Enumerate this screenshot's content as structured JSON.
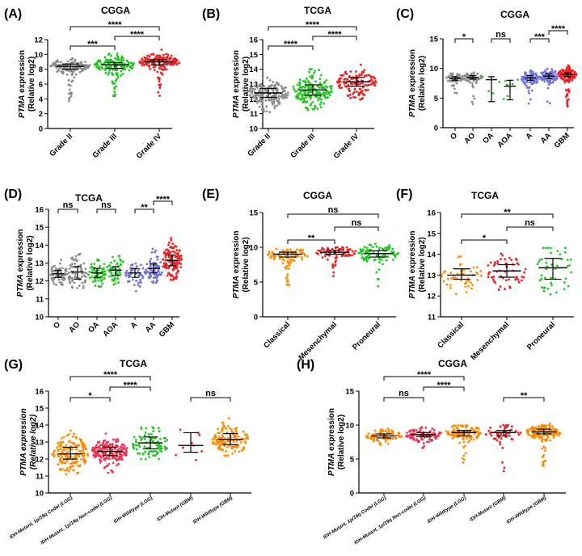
{
  "ylabel_main": "PTMA",
  "ylabel_rest": " expression",
  "ylabel_sub": "(Relative log2)",
  "chart_data": [
    {
      "panel": "(A)",
      "title": "CGGA",
      "type": "scatter",
      "ylim": [
        0,
        12
      ],
      "yticks": [
        0,
        2,
        4,
        6,
        8,
        10,
        12
      ],
      "groups": [
        {
          "name": "Grade II",
          "median": 8.4,
          "q1": 8.0,
          "q3": 8.7,
          "min": 3.5,
          "max": 10.5,
          "color": "#8c8c8c",
          "n": 140
        },
        {
          "name": "Grade III",
          "median": 8.6,
          "q1": 8.1,
          "q3": 8.9,
          "min": 3.5,
          "max": 10.1,
          "color": "#1fc81f",
          "n": 150
        },
        {
          "name": "Grade IV",
          "median": 9.0,
          "q1": 8.6,
          "q3": 9.3,
          "min": 3.2,
          "max": 10.9,
          "color": "#ee2020",
          "n": 150
        }
      ],
      "brackets": [
        {
          "from": 0,
          "to": 1,
          "label": "***"
        },
        {
          "from": 1,
          "to": 2,
          "label": "****"
        },
        {
          "from": 0,
          "to": 2,
          "label": "****"
        }
      ]
    },
    {
      "panel": "(B)",
      "title": "TCGA",
      "type": "scatter",
      "ylim": [
        10,
        16
      ],
      "yticks": [
        10,
        11,
        12,
        13,
        14,
        15,
        16
      ],
      "groups": [
        {
          "name": "Grade II",
          "median": 12.4,
          "q1": 12.1,
          "q3": 12.7,
          "min": 11.1,
          "max": 13.7,
          "color": "#8c8c8c",
          "n": 160
        },
        {
          "name": "Grade III",
          "median": 12.6,
          "q1": 12.25,
          "q3": 12.95,
          "min": 11.25,
          "max": 14.0,
          "color": "#1fc81f",
          "n": 170
        },
        {
          "name": "Grade IV",
          "median": 13.15,
          "q1": 12.85,
          "q3": 13.45,
          "min": 11.9,
          "max": 14.4,
          "color": "#ee2020",
          "n": 120
        }
      ],
      "brackets": [
        {
          "from": 0,
          "to": 1,
          "label": "****"
        },
        {
          "from": 1,
          "to": 2,
          "label": "****"
        },
        {
          "from": 0,
          "to": 2,
          "label": "****"
        }
      ]
    },
    {
      "panel": "(C)",
      "title": "CGGA",
      "type": "scatter",
      "ylim": [
        0,
        15
      ],
      "yticks": [
        0,
        5,
        10,
        15
      ],
      "groups": [
        {
          "name": "O",
          "median": 8.3,
          "q1": 8.0,
          "q3": 8.6,
          "min": 4.5,
          "max": 9.6,
          "color": "#8c8c8c",
          "n": 60
        },
        {
          "name": "AO",
          "median": 8.5,
          "q1": 8.2,
          "q3": 8.8,
          "min": 3.9,
          "max": 9.8,
          "color": "#8c8c8c",
          "n": 60
        },
        {
          "name": "OA",
          "median": 8.1,
          "q1": 4.4,
          "q3": 8.6,
          "min": 4.3,
          "max": 8.7,
          "color": "#1fc81f",
          "n": 4
        },
        {
          "name": "AOA",
          "median": 7.0,
          "q1": 4.7,
          "q3": 8.0,
          "min": 4.6,
          "max": 8.1,
          "color": "#1fc81f",
          "n": 6
        },
        {
          "name": "A",
          "median": 8.4,
          "q1": 8.0,
          "q3": 8.8,
          "min": 3.5,
          "max": 10.5,
          "color": "#7373dd",
          "n": 90
        },
        {
          "name": "AA",
          "median": 8.7,
          "q1": 8.3,
          "q3": 9.1,
          "min": 4.0,
          "max": 10.0,
          "color": "#7373dd",
          "n": 80
        },
        {
          "name": "GBM",
          "median": 9.0,
          "q1": 8.6,
          "q3": 9.3,
          "min": 3.2,
          "max": 10.9,
          "color": "#ee2020",
          "n": 130
        }
      ],
      "brackets": [
        {
          "from": 0,
          "to": 1,
          "label": "*"
        },
        {
          "from": 2,
          "to": 3,
          "label": "ns"
        },
        {
          "from": 4,
          "to": 5,
          "label": "***"
        },
        {
          "from": 5,
          "to": 6,
          "label": "****"
        }
      ]
    },
    {
      "panel": "(D)",
      "title": "TCGA",
      "type": "scatter",
      "ylim": [
        10,
        16
      ],
      "yticks": [
        10,
        11,
        12,
        13,
        14,
        15,
        16
      ],
      "groups": [
        {
          "name": "O",
          "median": 12.4,
          "q1": 12.2,
          "q3": 12.6,
          "min": 11.6,
          "max": 13.3,
          "color": "#8c8c8c",
          "n": 70
        },
        {
          "name": "AO",
          "median": 12.5,
          "q1": 12.1,
          "q3": 12.8,
          "min": 11.6,
          "max": 13.5,
          "color": "#8c8c8c",
          "n": 70
        },
        {
          "name": "OA",
          "median": 12.45,
          "q1": 12.2,
          "q3": 12.7,
          "min": 11.5,
          "max": 13.4,
          "color": "#1fc81f",
          "n": 60
        },
        {
          "name": "AOA",
          "median": 12.6,
          "q1": 12.3,
          "q3": 12.8,
          "min": 11.8,
          "max": 13.4,
          "color": "#1fc81f",
          "n": 50
        },
        {
          "name": "A",
          "median": 12.45,
          "q1": 12.2,
          "q3": 12.7,
          "min": 11.4,
          "max": 13.7,
          "color": "#7373dd",
          "n": 50
        },
        {
          "name": "AA",
          "median": 12.7,
          "q1": 12.45,
          "q3": 12.95,
          "min": 11.9,
          "max": 14.0,
          "color": "#7373dd",
          "n": 80
        },
        {
          "name": "GBM",
          "median": 13.15,
          "q1": 12.85,
          "q3": 13.45,
          "min": 11.9,
          "max": 14.4,
          "color": "#ee2020",
          "n": 120
        }
      ],
      "brackets": [
        {
          "from": 0,
          "to": 1,
          "label": "ns"
        },
        {
          "from": 2,
          "to": 3,
          "label": "ns"
        },
        {
          "from": 4,
          "to": 5,
          "label": "**"
        },
        {
          "from": 5,
          "to": 6,
          "label": "****"
        }
      ]
    },
    {
      "panel": "(E)",
      "title": "CGGA",
      "type": "scatter",
      "ylim": [
        0,
        15
      ],
      "yticks": [
        0,
        5,
        10,
        15
      ],
      "groups": [
        {
          "name": "Classical",
          "median": 9.0,
          "q1": 8.6,
          "q3": 9.3,
          "min": 4.5,
          "max": 10.0,
          "color": "#ff8c00",
          "n": 90
        },
        {
          "name": "Mesenchymal",
          "median": 9.3,
          "q1": 9.0,
          "q3": 9.6,
          "min": 5.5,
          "max": 10.0,
          "color": "#ee2020",
          "n": 80
        },
        {
          "name": "Proneural",
          "median": 9.1,
          "q1": 8.6,
          "q3": 9.5,
          "min": 4.0,
          "max": 10.5,
          "color": "#1fc81f",
          "n": 90
        }
      ],
      "brackets": [
        {
          "from": 0,
          "to": 1,
          "label": "**"
        },
        {
          "from": 1,
          "to": 2,
          "label": "ns"
        },
        {
          "from": 0,
          "to": 2,
          "label": "ns"
        }
      ]
    },
    {
      "panel": "(F)",
      "title": "TCGA",
      "type": "scatter",
      "ylim": [
        11,
        16
      ],
      "yticks": [
        11,
        12,
        13,
        14,
        15,
        16
      ],
      "groups": [
        {
          "name": "Classical",
          "median": 13.0,
          "q1": 12.8,
          "q3": 13.3,
          "min": 12.1,
          "max": 13.9,
          "color": "#ff8c00",
          "n": 50
        },
        {
          "name": "Mesenchymal",
          "median": 13.2,
          "q1": 12.9,
          "q3": 13.5,
          "min": 12.3,
          "max": 14.3,
          "color": "#ee2020",
          "n": 55
        },
        {
          "name": "Proneural",
          "median": 13.35,
          "q1": 12.8,
          "q3": 13.8,
          "min": 12.0,
          "max": 14.3,
          "color": "#1fc81f",
          "n": 45
        }
      ],
      "brackets": [
        {
          "from": 0,
          "to": 1,
          "label": "*"
        },
        {
          "from": 1,
          "to": 2,
          "label": "ns"
        },
        {
          "from": 0,
          "to": 2,
          "label": "**"
        }
      ]
    },
    {
      "panel": "(G)",
      "title": "TCGA",
      "type": "scatter",
      "ylim": [
        10,
        16
      ],
      "yticks": [
        10,
        11,
        12,
        13,
        14,
        15,
        16
      ],
      "groups": [
        {
          "name": "IDH-Mutant, 1p/19q Codel (LGG)",
          "median": 12.3,
          "q1": 12.0,
          "q3": 12.7,
          "min": 11.1,
          "max": 13.8,
          "color": "#ff8c00",
          "n": 160
        },
        {
          "name": "IDH-Mutant, 1p/19q Non-codel (LGG)",
          "median": 12.45,
          "q1": 12.2,
          "q3": 12.7,
          "min": 11.1,
          "max": 13.5,
          "color": "#ee3355",
          "n": 190
        },
        {
          "name": "IDH-Wildtype (LGG)",
          "median": 12.95,
          "q1": 12.6,
          "q3": 13.3,
          "min": 12.0,
          "max": 14.0,
          "color": "#1fc81f",
          "n": 90
        },
        {
          "name": "IDH-Mutant (GBM)",
          "median": 12.8,
          "q1": 12.4,
          "q3": 13.55,
          "min": 11.9,
          "max": 14.0,
          "color": "#ee2020",
          "n": 9
        },
        {
          "name": "IDH-Wildtype (GBM)",
          "median": 13.15,
          "q1": 12.85,
          "q3": 13.5,
          "min": 12.2,
          "max": 14.4,
          "color": "#ff8c00",
          "n": 130
        }
      ],
      "brackets": [
        {
          "from": 0,
          "to": 1,
          "label": "*"
        },
        {
          "from": 1,
          "to": 2,
          "label": "****"
        },
        {
          "from": 0,
          "to": 2,
          "label": "****"
        },
        {
          "from": 3,
          "to": 4,
          "label": "ns"
        }
      ]
    },
    {
      "panel": "(H)",
      "title": "CGGA",
      "type": "scatter",
      "ylim": [
        0,
        15
      ],
      "yticks": [
        0,
        5,
        10,
        15
      ],
      "groups": [
        {
          "name": "IDH-Mutant, 1p/19q Codel (LGG)",
          "median": 8.4,
          "q1": 8.1,
          "q3": 8.7,
          "min": 7.0,
          "max": 9.7,
          "color": "#ff8c00",
          "n": 80
        },
        {
          "name": "IDH-Mutant, 1p/19q Non-codel (LGG)",
          "median": 8.6,
          "q1": 8.3,
          "q3": 8.9,
          "min": 6.5,
          "max": 10.0,
          "color": "#ee3355",
          "n": 90
        },
        {
          "name": "IDH-Wildtype (LGG)",
          "median": 8.9,
          "q1": 8.4,
          "q3": 9.2,
          "min": 4.0,
          "max": 10.5,
          "color": "#ff8c00",
          "n": 120
        },
        {
          "name": "IDH-Mutant (GBM)",
          "median": 8.9,
          "q1": 8.4,
          "q3": 9.2,
          "min": 3.2,
          "max": 10.0,
          "color": "#ee2020",
          "n": 50
        },
        {
          "name": "IDH-Wildtype (GBM)",
          "median": 9.0,
          "q1": 8.7,
          "q3": 9.4,
          "min": 3.8,
          "max": 11.0,
          "color": "#ff8c00",
          "n": 150
        }
      ],
      "brackets": [
        {
          "from": 0,
          "to": 1,
          "label": "ns"
        },
        {
          "from": 1,
          "to": 2,
          "label": "****"
        },
        {
          "from": 0,
          "to": 2,
          "label": "****"
        },
        {
          "from": 3,
          "to": 4,
          "label": "**"
        }
      ]
    }
  ]
}
